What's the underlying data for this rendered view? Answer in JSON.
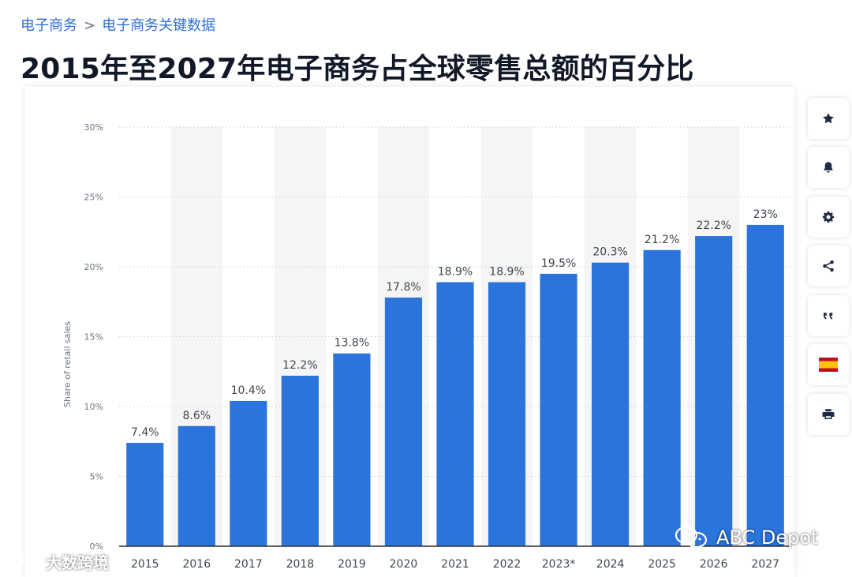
{
  "breadcrumb": {
    "parent": "电子商务",
    "separator": ">",
    "current": "电子商务关键数据"
  },
  "page_title": "2015年至2027年电子商务占全球零售总额的百分比",
  "chart_data": {
    "type": "bar",
    "title": "2015年至2027年电子商务占全球零售总额的百分比",
    "xlabel": "",
    "ylabel": "Share of retail sales",
    "categories": [
      "2015",
      "2016",
      "2017",
      "2018",
      "2019",
      "2020",
      "2021",
      "2022",
      "2023*",
      "2024",
      "2025",
      "2026",
      "2027"
    ],
    "values": [
      7.4,
      8.6,
      10.4,
      12.2,
      13.8,
      17.8,
      18.9,
      18.9,
      19.5,
      20.3,
      21.2,
      22.2,
      23
    ],
    "data_labels": [
      "7.4%",
      "8.6%",
      "10.4%",
      "12.2%",
      "13.8%",
      "17.8%",
      "18.9%",
      "18.9%",
      "19.5%",
      "20.3%",
      "21.2%",
      "22.2%",
      "23%"
    ],
    "ylim": [
      0,
      30
    ],
    "yticks": [
      0,
      5,
      10,
      15,
      20,
      25,
      30
    ],
    "ytick_labels": [
      "0%",
      "5%",
      "10%",
      "15%",
      "20%",
      "25%",
      "30%"
    ],
    "grid": true,
    "legend": "none",
    "colors": {
      "bar": "#2b74dc",
      "band": "#f5f5f5",
      "grid": "#c9ced6",
      "axis": "#2f2f2f",
      "text": "#3f4650",
      "muted": "#6b7280"
    }
  },
  "toolbar": [
    {
      "name": "star",
      "icon": "star-icon"
    },
    {
      "name": "notifications",
      "icon": "bell-icon"
    },
    {
      "name": "settings",
      "icon": "gear-icon"
    },
    {
      "name": "share",
      "icon": "share-icon"
    },
    {
      "name": "cite",
      "icon": "quote-icon"
    },
    {
      "name": "language",
      "icon": "spain-flag-icon"
    },
    {
      "name": "print",
      "icon": "print-icon"
    }
  ],
  "watermarks": {
    "left": "大数跨境",
    "right": "ABC Depot"
  }
}
